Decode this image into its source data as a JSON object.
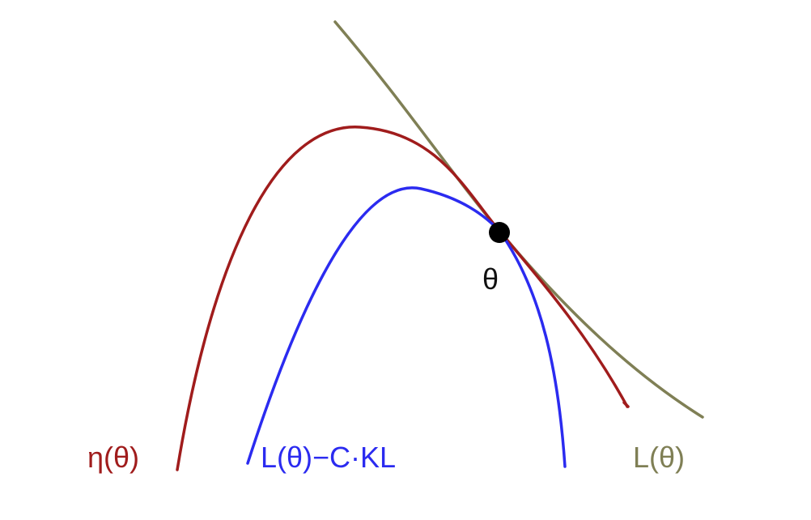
{
  "diagram": {
    "labels": {
      "eta": "η(θ)",
      "surrogate": "L(θ)−C·KL",
      "L": "L(θ)",
      "theta": "θ"
    },
    "colors": {
      "eta": "#a01c1c",
      "surrogate": "#2b2bf0",
      "L": "#7f7f55",
      "point": "#000000",
      "theta_label": "#111111",
      "background": "#ffffff"
    }
  }
}
